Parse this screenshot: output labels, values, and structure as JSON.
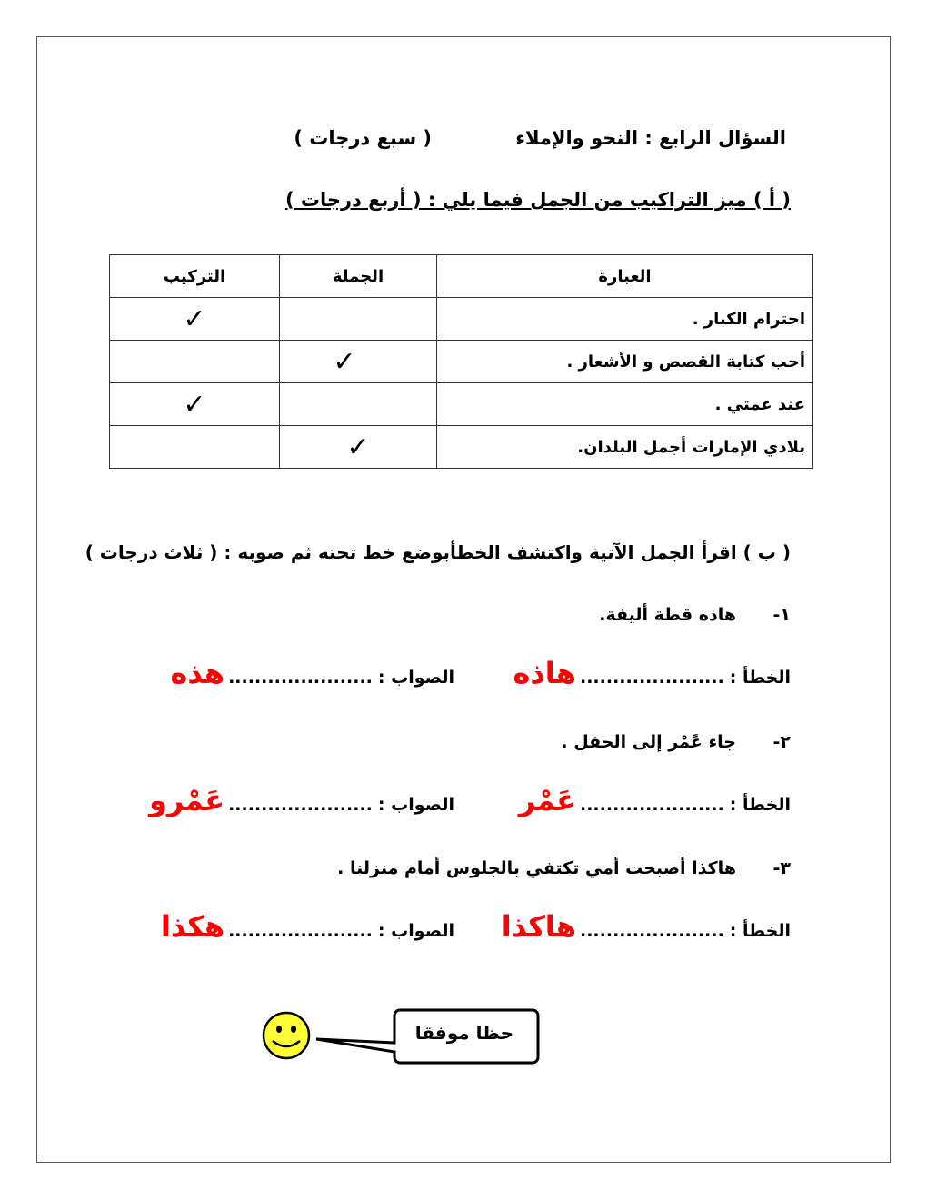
{
  "header": {
    "question_title": "السؤال الرابع : النحو والإملاء",
    "marks": "( سبع درجات )"
  },
  "part_a": {
    "instruction": "( أ ) ميز التراكيب من الجمل فيما يلي : ( أربع درجات )",
    "columns": [
      "العبارة",
      "الجملة",
      "التركيب"
    ],
    "rows": [
      {
        "text": "احترام الكبار .",
        "answer": "التركيب"
      },
      {
        "text": "أحب كتابة القصص و الأشعار .",
        "answer": "الجملة"
      },
      {
        "text": "عند عمتي .",
        "answer": "التركيب"
      },
      {
        "text": "بلادي الإمارات أجمل البلدان.",
        "answer": "الجملة"
      }
    ],
    "check_mark": "✓"
  },
  "part_b": {
    "instruction": "( ب ) اقرأ الجمل الآتية واكتشف الخطأبوضع خط تحته   ثم صوبه : ( ثلاث درجات )",
    "wrong_label": "الخطأ :",
    "correct_label": "الصواب :",
    "dots": "......................",
    "items": [
      {
        "number": "١-",
        "sentence": "هاذه قطة  أليفة.",
        "wrong": "هاذه",
        "correct": "هذه"
      },
      {
        "number": "٢-",
        "sentence": "جاء عًمْر إلى الحفل .",
        "wrong": "عَمْر",
        "correct": "عَمْرو"
      },
      {
        "number": "٣-",
        "sentence": "هاكذا أصبحت أمي  تكتفي بالجلوس أمام منزلنا .",
        "wrong": "هاكذا",
        "correct": "هكذا"
      }
    ]
  },
  "footer": {
    "bubble_text": "حظا موفقا",
    "smiley_icon": "smiley-face-icon"
  },
  "colors": {
    "answer": "#ff0000",
    "smiley": "#ffff33"
  }
}
